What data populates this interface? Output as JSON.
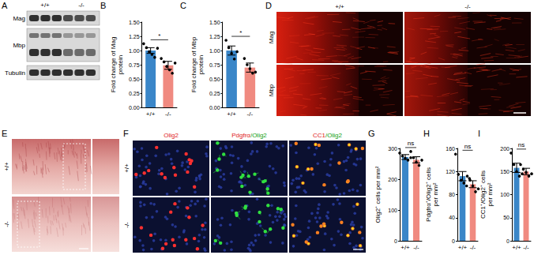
{
  "panels": {
    "letters": [
      "A",
      "B",
      "C",
      "D",
      "E",
      "F",
      "G",
      "H",
      "I"
    ],
    "A": {
      "genotypes": [
        "+/+",
        "-/-"
      ],
      "rows": [
        "Mag",
        "Mbp",
        "Tubulin"
      ]
    },
    "D": {
      "genotypes": [
        "+/+",
        "-/-"
      ],
      "rows": [
        "Mag",
        "Mbp"
      ]
    },
    "E": {
      "genotypes": [
        "+/+",
        "-/-"
      ]
    },
    "F": {
      "columns": [
        "Olig2",
        "Pdgfrα/Olig2",
        "CC1/Olig2"
      ],
      "genotypes": [
        "+/+",
        "-/-"
      ]
    }
  },
  "chart_data": [
    {
      "type": "bar",
      "ylabel": "Fold change of Mag\nprotein",
      "categories": [
        "+/+",
        "-/-"
      ],
      "values": [
        1.0,
        0.74
      ],
      "errors": [
        0.05,
        0.07
      ],
      "points": [
        [
          1.12,
          1.05,
          0.98,
          0.93,
          0.88,
          1.04
        ],
        [
          0.86,
          0.8,
          0.72,
          0.66,
          0.6,
          0.78
        ]
      ],
      "colors": [
        "#3a86c8",
        "#f08a80"
      ],
      "ylim": [
        0,
        1.5
      ],
      "yticks": [
        {
          "value": 0,
          "label": "0.00"
        },
        {
          "value": 0.25,
          "label": "0.25"
        },
        {
          "value": 0.5,
          "label": "0.50"
        },
        {
          "value": 0.75,
          "label": "0.75"
        },
        {
          "value": 1,
          "label": "1.00"
        },
        {
          "value": 1.25,
          "label": "1.25"
        },
        {
          "value": 1.5,
          "label": "1.50"
        }
      ],
      "annotations": [
        "*"
      ]
    },
    {
      "type": "bar",
      "ylabel": "Fold change of Mbp\nprotein",
      "categories": [
        "+/+",
        "-/-"
      ],
      "values": [
        1.0,
        0.7
      ],
      "errors": [
        0.08,
        0.08
      ],
      "points": [
        [
          1.18,
          1.05,
          0.95,
          0.85,
          0.98
        ],
        [
          0.86,
          0.75,
          0.68,
          0.6,
          0.62
        ]
      ],
      "colors": [
        "#3a86c8",
        "#f08a80"
      ],
      "ylim": [
        0,
        1.5
      ],
      "yticks": [
        {
          "value": 0,
          "label": "0.00"
        },
        {
          "value": 0.25,
          "label": "0.25"
        },
        {
          "value": 0.5,
          "label": "0.50"
        },
        {
          "value": 0.75,
          "label": "0.75"
        },
        {
          "value": 1,
          "label": "1.00"
        },
        {
          "value": 1.25,
          "label": "1.25"
        },
        {
          "value": 1.5,
          "label": "1.50"
        }
      ],
      "annotations": [
        "*"
      ]
    },
    {
      "type": "bar",
      "ylabel": "Olig2⁺ cells per mm²",
      "categories": [
        "+/+",
        "-/-"
      ],
      "values": [
        272,
        263
      ],
      "errors": [
        8,
        10
      ],
      "points": [
        [
          285,
          275,
          268,
          262,
          270
        ],
        [
          290,
          270,
          255,
          245,
          262
        ]
      ],
      "colors": [
        "#3a86c8",
        "#f08a80"
      ],
      "ylim": [
        0,
        300
      ],
      "yticks": [
        0,
        100,
        200,
        300
      ],
      "annotations": [
        "ns"
      ]
    },
    {
      "type": "bar",
      "ylabel": "Pdgfrα⁺/Olig2⁺ cells\nper mm²",
      "categories": [
        "+/+",
        "-/-"
      ],
      "values": [
        112,
        98
      ],
      "errors": [
        8,
        6
      ],
      "points": [
        [
          150,
          115,
          105,
          100,
          95,
          108
        ],
        [
          112,
          105,
          95,
          85,
          90
        ]
      ],
      "colors": [
        "#3a86c8",
        "#f08a80"
      ],
      "ylim": [
        0,
        160
      ],
      "yticks": [
        0,
        40,
        80,
        120,
        160
      ],
      "annotations": [
        "ns"
      ]
    },
    {
      "type": "bar",
      "ylabel": "CC1⁺/Olig2⁺ cells\nper mm²",
      "categories": [
        "+/+",
        "-/-"
      ],
      "values": [
        158,
        150
      ],
      "errors": [
        10,
        7
      ],
      "points": [
        [
          190,
          165,
          150,
          140,
          145
        ],
        [
          165,
          155,
          148,
          140,
          145
        ]
      ],
      "colors": [
        "#3a86c8",
        "#f08a80"
      ],
      "ylim": [
        0,
        200
      ],
      "yticks": [
        0,
        50,
        100,
        150,
        200
      ],
      "annotations": [
        "ns"
      ]
    }
  ]
}
